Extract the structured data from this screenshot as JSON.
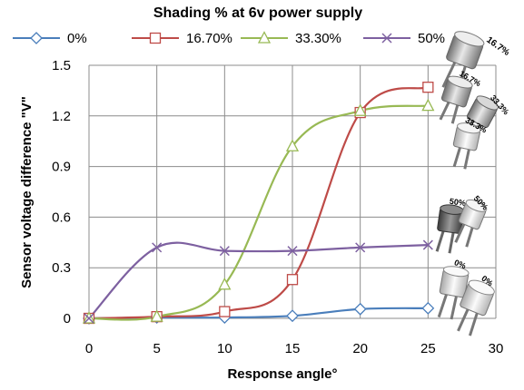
{
  "chart_data": {
    "type": "line",
    "title": "Shading % at 6v power supply",
    "xlabel": "Response angle°",
    "ylabel": "Sensor voltage difference \"V\"",
    "xlim": [
      0,
      30
    ],
    "ylim": [
      0,
      1.5
    ],
    "x_ticks": [
      0,
      5,
      10,
      15,
      20,
      25,
      30
    ],
    "y_ticks": [
      0,
      0.3,
      0.6,
      0.9,
      1.2,
      1.5
    ],
    "x_tick_labels": [
      "0",
      "5",
      "10",
      "15",
      "20",
      "25",
      "30"
    ],
    "y_tick_labels": [
      "0",
      "0.3",
      "0.6",
      "0.9",
      "1.2",
      "1.5"
    ],
    "grid": true,
    "legend_position": "top",
    "series": [
      {
        "name": "0%",
        "color": "#4a7ebb",
        "marker": "diamond",
        "x": [
          0,
          5,
          10,
          15,
          20,
          25
        ],
        "y": [
          0,
          0.005,
          0.005,
          0.015,
          0.055,
          0.06
        ]
      },
      {
        "name": "16.70%",
        "color": "#be4b48",
        "marker": "square",
        "x": [
          0,
          5,
          10,
          15,
          20,
          25
        ],
        "y": [
          0,
          0.01,
          0.04,
          0.23,
          1.22,
          1.37
        ]
      },
      {
        "name": "33.30%",
        "color": "#98b954",
        "marker": "triangle",
        "x": [
          0,
          5,
          10,
          15,
          20,
          25
        ],
        "y": [
          0,
          0.01,
          0.2,
          1.02,
          1.23,
          1.26
        ]
      },
      {
        "name": "50%",
        "color": "#7d60a0",
        "marker": "x",
        "x": [
          0,
          5,
          10,
          15,
          20,
          25
        ],
        "y": [
          0,
          0.42,
          0.4,
          0.4,
          0.42,
          0.435
        ]
      }
    ]
  },
  "annotations": {
    "sensor_images": [
      {
        "labels": [
          "16.7%"
        ],
        "icon": "sensor-16-7-top-icon"
      },
      {
        "labels": [
          "16.7%",
          "33.3%",
          "33.3%"
        ],
        "icon": "sensor-pair-16-33-icon"
      },
      {
        "labels": [
          "50%",
          "50%"
        ],
        "icon": "sensor-pair-50-icon"
      },
      {
        "labels": [
          "0%",
          "0%"
        ],
        "icon": "sensor-pair-0-icon"
      }
    ]
  }
}
